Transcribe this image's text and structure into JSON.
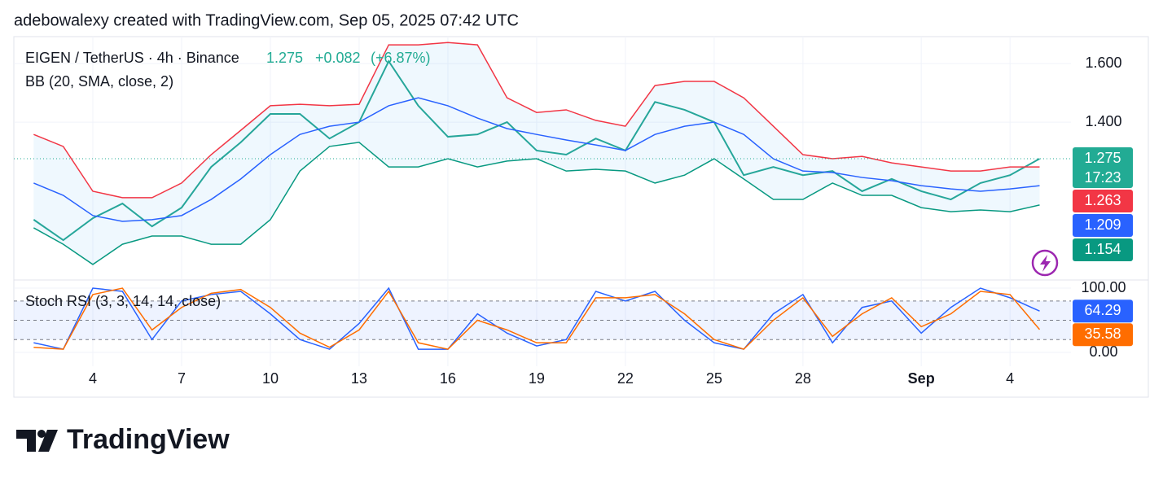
{
  "header": "adebowalexy created with TradingView.com, Sep 05, 2025 07:42 UTC",
  "logo": "TradingView",
  "chart_data": [
    {
      "type": "line",
      "title": "EIGEN / TetherUS · 4h · Binance",
      "last": 1.275,
      "change": "+0.082",
      "change_pct": "(+6.87%)",
      "indicator": "BB (20, SMA, close, 2)",
      "x": [
        2,
        3,
        4,
        5,
        6,
        7,
        8,
        9,
        10,
        11,
        12,
        13,
        14,
        15,
        16,
        17,
        18,
        19,
        20,
        21,
        22,
        23,
        24,
        25,
        26,
        27,
        28,
        29,
        30,
        31,
        32,
        33,
        34,
        35,
        36
      ],
      "series": [
        {
          "color": "#26a69a",
          "values": [
            1.067,
            0.997,
            1.072,
            1.122,
            1.044,
            1.108,
            1.247,
            1.331,
            1.428,
            1.428,
            1.344,
            1.4,
            1.608,
            1.456,
            1.35,
            1.358,
            1.4,
            1.303,
            1.289,
            1.344,
            1.303,
            1.469,
            1.442,
            1.4,
            1.219,
            1.247,
            1.219,
            1.233,
            1.164,
            1.206,
            1.164,
            1.136,
            1.192,
            1.219,
            1.275
          ]
        },
        {
          "color": "#f23645",
          "values": [
            1.358,
            1.317,
            1.164,
            1.142,
            1.142,
            1.192,
            1.289,
            1.372,
            1.456,
            1.461,
            1.456,
            1.461,
            1.664,
            1.664,
            1.672,
            1.664,
            1.483,
            1.433,
            1.442,
            1.406,
            1.386,
            1.525,
            1.539,
            1.539,
            1.483,
            1.386,
            1.289,
            1.275,
            1.283,
            1.261,
            1.247,
            1.233,
            1.233,
            1.247,
            1.247
          ]
        },
        {
          "color": "#2962ff",
          "values": [
            1.192,
            1.15,
            1.081,
            1.061,
            1.067,
            1.081,
            1.136,
            1.206,
            1.289,
            1.358,
            1.386,
            1.4,
            1.456,
            1.483,
            1.456,
            1.414,
            1.378,
            1.358,
            1.339,
            1.322,
            1.303,
            1.358,
            1.386,
            1.4,
            1.358,
            1.275,
            1.233,
            1.228,
            1.211,
            1.2,
            1.183,
            1.172,
            1.164,
            1.172,
            1.183
          ]
        },
        {
          "color": "#089981",
          "values": [
            1.039,
            0.983,
            0.914,
            0.983,
            1.011,
            1.011,
            0.983,
            0.983,
            1.067,
            1.233,
            1.317,
            1.331,
            1.247,
            1.247,
            1.275,
            1.247,
            1.267,
            1.275,
            1.233,
            1.239,
            1.233,
            1.192,
            1.219,
            1.275,
            1.206,
            1.136,
            1.136,
            1.192,
            1.15,
            1.15,
            1.108,
            1.094,
            1.1,
            1.094,
            1.117
          ]
        }
      ],
      "price_labels": [
        {
          "value": 1.275,
          "color": "#22ab94"
        },
        {
          "value": 1.263,
          "color": "#f23645"
        },
        {
          "value": 1.209,
          "color": "#2962ff"
        },
        {
          "value": 1.154,
          "color": "#089981"
        }
      ],
      "countdown": "17:23",
      "xlim": [
        1.33,
        37.06
      ],
      "ylim": [
        0.861,
        1.692
      ],
      "yticks": [
        {
          "value": 1.6,
          "label": "1.600"
        },
        {
          "value": 1.4,
          "label": "1.400"
        }
      ],
      "grid": true
    },
    {
      "type": "line",
      "title": "Stoch RSI (3, 3, 14, 14, close)",
      "x": [
        2,
        3,
        4,
        5,
        6,
        7,
        8,
        9,
        10,
        11,
        12,
        13,
        14,
        15,
        16,
        17,
        18,
        19,
        20,
        21,
        22,
        23,
        24,
        25,
        26,
        27,
        28,
        29,
        30,
        31,
        32,
        33,
        34,
        35,
        36
      ],
      "series": [
        {
          "color": "#2962ff",
          "values": [
            15,
            5,
            100,
            95,
            20,
            80,
            90,
            95,
            60,
            20,
            5,
            45,
            100,
            5,
            5,
            60,
            30,
            10,
            20,
            95,
            80,
            95,
            50,
            15,
            5,
            60,
            90,
            15,
            70,
            80,
            30,
            70,
            100,
            85,
            64.29
          ]
        },
        {
          "color": "#ff6d00",
          "values": [
            8,
            5,
            90,
            100,
            35,
            70,
            92,
            98,
            70,
            30,
            8,
            35,
            95,
            15,
            5,
            50,
            35,
            15,
            15,
            85,
            85,
            90,
            60,
            20,
            5,
            50,
            85,
            25,
            60,
            85,
            40,
            60,
            95,
            90,
            35.58
          ]
        }
      ],
      "levels": [
        80,
        50,
        20
      ],
      "xlim": [
        1.33,
        37.06
      ],
      "ylim": [
        -21.5,
        112.7
      ],
      "yticks": [
        {
          "value": 100,
          "label": "100.00"
        },
        {
          "value": 0,
          "label": "0.00"
        }
      ],
      "xticks": [
        4,
        7,
        10,
        13,
        16,
        19,
        22,
        25,
        28,
        {
          "value": 32,
          "label": "Sep"
        },
        {
          "value": 35,
          "label": "4"
        }
      ],
      "grid": true
    }
  ]
}
